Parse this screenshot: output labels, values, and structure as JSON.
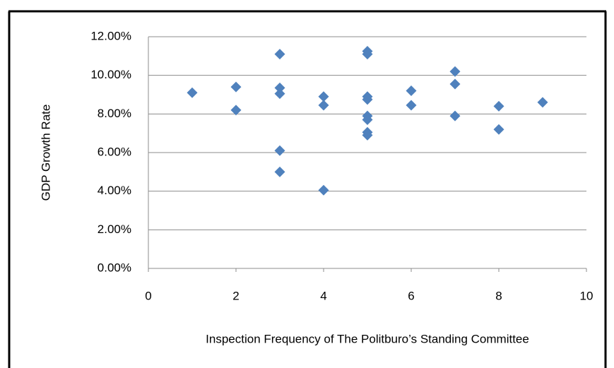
{
  "chart_data": {
    "type": "scatter",
    "x_label": "Inspection Frequency of The Politburo’s Standing Committee",
    "y_label": "GDP Growth Rate",
    "color": "#4f81bd",
    "grid": true,
    "xlim": [
      0,
      10
    ],
    "xticks": [
      0,
      2,
      4,
      6,
      8,
      10
    ],
    "ylim": [
      0,
      12
    ],
    "yticks": [
      {
        "value": 0,
        "label": "0.00%"
      },
      {
        "value": 2,
        "label": "2.00%"
      },
      {
        "value": 4,
        "label": "4.00%"
      },
      {
        "value": 6,
        "label": "6.00%"
      },
      {
        "value": 8,
        "label": "8.00%"
      },
      {
        "value": 10,
        "label": "10.00%"
      },
      {
        "value": 12,
        "label": "12.00%"
      }
    ],
    "x": [
      1,
      2,
      2,
      3,
      3,
      3,
      3,
      3,
      4,
      4,
      4,
      5,
      5,
      5,
      5,
      5,
      5,
      5,
      5,
      6,
      6,
      7,
      7,
      7,
      8,
      8,
      9
    ],
    "values": [
      9.1,
      9.4,
      8.2,
      11.1,
      9.35,
      9.05,
      6.1,
      5.0,
      8.9,
      8.45,
      4.05,
      11.25,
      11.1,
      8.9,
      8.75,
      7.9,
      7.7,
      7.05,
      6.9,
      9.2,
      8.45,
      10.2,
      9.55,
      7.9,
      8.4,
      7.2,
      8.6
    ]
  }
}
